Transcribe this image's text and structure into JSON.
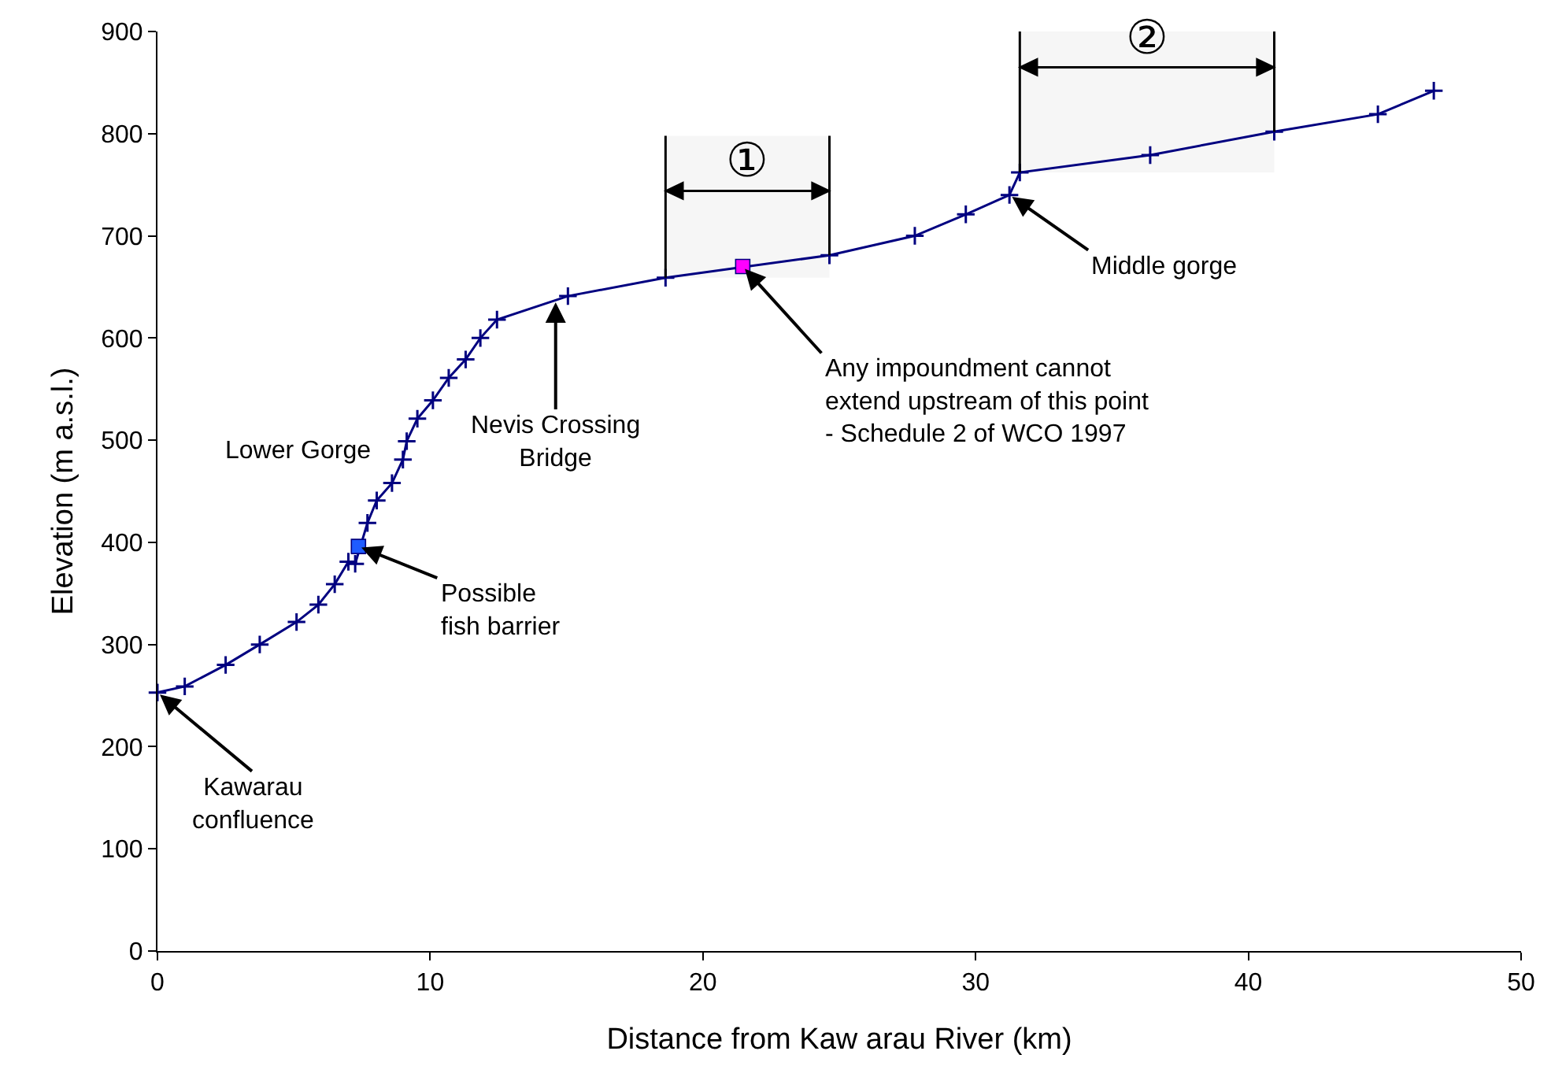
{
  "chart_data": {
    "type": "line",
    "xlabel": "Distance from Kaw arau River (km)",
    "ylabel": "Elevation (m a.s.l.)",
    "xlim": [
      0,
      50
    ],
    "xticks": [
      0,
      10,
      20,
      30,
      40,
      50
    ],
    "ylim": [
      0,
      900
    ],
    "yticks": [
      0,
      100,
      200,
      300,
      400,
      500,
      600,
      700,
      800,
      900
    ],
    "grid": false,
    "marker": "cross",
    "line_style": "solid",
    "series": [
      {
        "color": "#000080",
        "x": [
          0,
          1.0,
          2.5,
          3.75,
          5.1,
          5.9,
          6.5,
          7.0,
          7.25,
          7.7,
          8.04,
          8.6,
          9.0,
          9.14,
          9.53,
          10.1,
          10.68,
          11.3,
          11.84,
          12.45,
          15.05,
          18.63,
          24.64,
          27.77,
          29.64,
          31.24,
          31.62,
          36.4,
          40.95,
          44.75,
          46.8
        ],
        "values": [
          253,
          259,
          280,
          300,
          322,
          339,
          359,
          381,
          379,
          419,
          441,
          458,
          481,
          499,
          521,
          539,
          561,
          579,
          600,
          618,
          641,
          659,
          681,
          700,
          721,
          740,
          762,
          779,
          802,
          819,
          842
        ]
      },
      {
        "type": "scatter",
        "marker": "square",
        "color": "#1f5cff",
        "x": [
          7.37
        ],
        "values": [
          396
        ]
      },
      {
        "type": "scatter",
        "marker": "square",
        "color": "#ff00ff",
        "x": [
          21.46
        ],
        "values": [
          670
        ]
      }
    ],
    "bands": [
      {
        "axis": "x",
        "from": 18.63,
        "to": 24.64,
        "label": "①"
      },
      {
        "axis": "x",
        "from": 31.62,
        "to": 40.95,
        "label": "②"
      }
    ],
    "annotations": [
      {
        "text": "Kawarau\nconfluence",
        "x": 0,
        "y": 253
      },
      {
        "text": "Possible\nfish barrier",
        "x": 7.37,
        "y": 396
      },
      "Lower Gorge",
      {
        "text": "Nevis Crossing\nBridge",
        "x": 14.6,
        "y": 638
      },
      {
        "text": "Any impoundment cannot\nextend upstream of this point\n- Schedule 2 of WCO 1997",
        "x": 21.46,
        "y": 670
      },
      {
        "text": "Middle gorge",
        "x": 31.24,
        "y": 740
      }
    ]
  }
}
